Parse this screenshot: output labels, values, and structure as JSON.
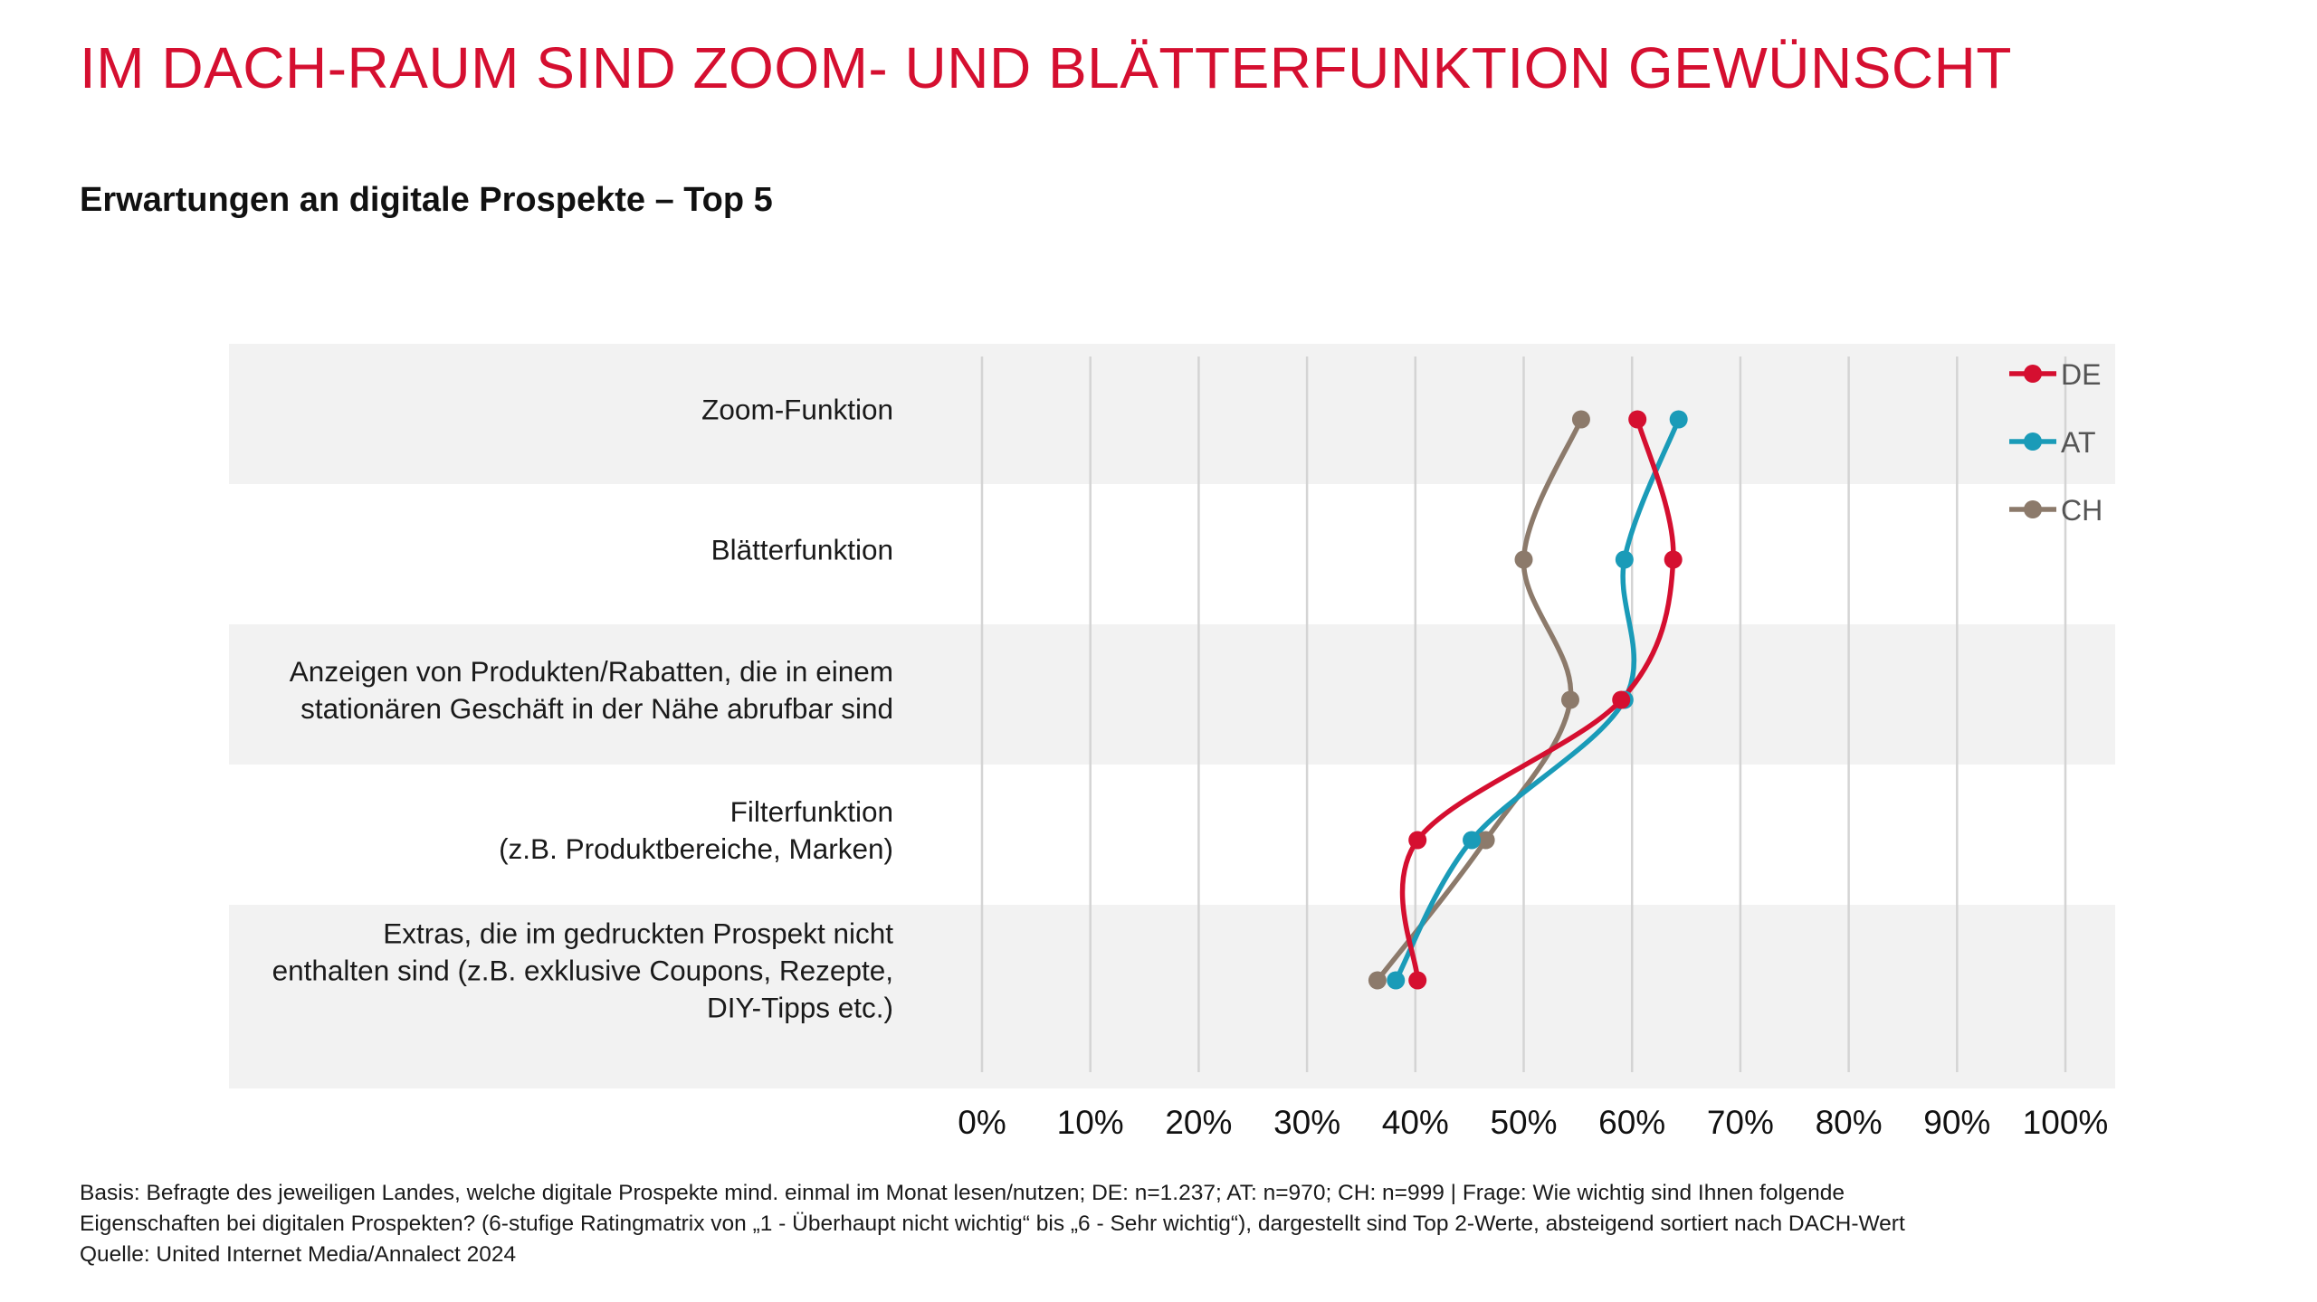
{
  "page": {
    "title": "IM DACH-RAUM SIND ZOOM- UND BLÄTTERFUNKTION GEWÜNSCHT",
    "subtitle": "Erwartungen an digitale Prospekte – Top 5"
  },
  "chart_data": {
    "type": "line",
    "orientation": "horizontal",
    "title": "Erwartungen an digitale Prospekte – Top 5",
    "categories": [
      [
        "Zoom-Funktion"
      ],
      [
        "Blätterfunktion"
      ],
      [
        "Anzeigen von Produkten/Rabatten, die in einem",
        "stationären Geschäft in der Nähe abrufbar sind"
      ],
      [
        "Filterfunktion",
        "(z.B. Produktbereiche, Marken)"
      ],
      [
        "Extras, die im gedruckten Prospekt nicht",
        "enthalten sind (z.B. exklusive Coupons, Rezepte,",
        "DIY-Tipps etc.)"
      ]
    ],
    "series": [
      {
        "name": "DE",
        "color": "#d50f30",
        "values": [
          60.5,
          63.8,
          59.0,
          40.2,
          40.2
        ]
      },
      {
        "name": "AT",
        "color": "#1a9bb8",
        "values": [
          64.3,
          59.3,
          59.3,
          45.2,
          38.2
        ]
      },
      {
        "name": "CH",
        "color": "#8c7a6b",
        "values": [
          55.3,
          50.0,
          54.3,
          46.5,
          36.5
        ]
      }
    ],
    "x_ticks": [
      "0%",
      "10%",
      "20%",
      "30%",
      "40%",
      "50%",
      "60%",
      "70%",
      "80%",
      "90%",
      "100%"
    ],
    "xlim": [
      0,
      100
    ],
    "legend": "top-right",
    "grid": true
  },
  "footnote": {
    "line1": "Basis: Befragte des jeweiligen Landes, welche digitale Prospekte mind. einmal im Monat lesen/nutzen; DE: n=1.237; AT: n=970; CH: n=999 | Frage: Wie wichtig sind Ihnen folgende",
    "line2": "Eigenschaften bei digitalen Prospekten? (6-stufige Ratingmatrix von „1 - Überhaupt nicht wichtig“ bis „6 - Sehr wichtig“), dargestellt sind Top 2-Werte, absteigend sortiert nach DACH-Wert",
    "line3": "Quelle: United Internet Media/Annalect 2024"
  }
}
